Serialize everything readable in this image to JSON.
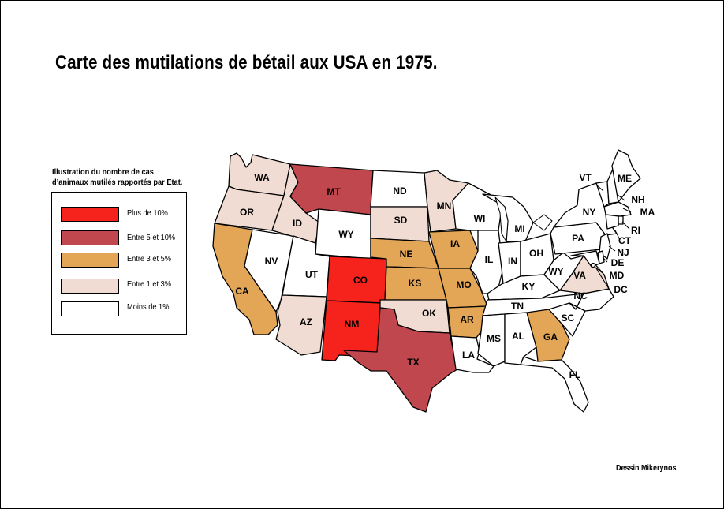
{
  "title": "Carte des mutilations de bétail aux USA en 1975.",
  "legend": {
    "caption": "Illustration du nombre de cas d’animaux mutilés rapportés par Etat.",
    "items": [
      {
        "label": "Plus de 10%",
        "color": "#f5231b"
      },
      {
        "label": "Entre 5 et 10%",
        "color": "#c0474e"
      },
      {
        "label": "Entre 3 et 5%",
        "color": "#e3a556"
      },
      {
        "label": "Entre 1 et 3%",
        "color": "#f0dcd2"
      },
      {
        "label": "Moins de 1%",
        "color": "#ffffff"
      }
    ]
  },
  "credit": "Dessin Mikerynos",
  "states": [
    {
      "abbr": "WA",
      "category": 3
    },
    {
      "abbr": "OR",
      "category": 3
    },
    {
      "abbr": "CA",
      "category": 2
    },
    {
      "abbr": "ID",
      "category": 3
    },
    {
      "abbr": "NV",
      "category": 4
    },
    {
      "abbr": "UT",
      "category": 4
    },
    {
      "abbr": "AZ",
      "category": 3
    },
    {
      "abbr": "MT",
      "category": 1
    },
    {
      "abbr": "WY",
      "category": 4
    },
    {
      "abbr": "CO",
      "category": 0
    },
    {
      "abbr": "NM",
      "category": 0
    },
    {
      "abbr": "ND",
      "category": 4
    },
    {
      "abbr": "SD",
      "category": 3
    },
    {
      "abbr": "NE",
      "category": 2
    },
    {
      "abbr": "KS",
      "category": 2
    },
    {
      "abbr": "OK",
      "category": 3
    },
    {
      "abbr": "TX",
      "category": 1
    },
    {
      "abbr": "MN",
      "category": 3
    },
    {
      "abbr": "IA",
      "category": 2
    },
    {
      "abbr": "MO",
      "category": 2
    },
    {
      "abbr": "AR",
      "category": 2
    },
    {
      "abbr": "LA",
      "category": 4
    },
    {
      "abbr": "WI",
      "category": 4
    },
    {
      "abbr": "IL",
      "category": 4
    },
    {
      "abbr": "MI",
      "category": 4
    },
    {
      "abbr": "IN",
      "category": 4
    },
    {
      "abbr": "OH",
      "category": 4
    },
    {
      "abbr": "KY",
      "category": 4
    },
    {
      "abbr": "TN",
      "category": 4
    },
    {
      "abbr": "MS",
      "category": 4
    },
    {
      "abbr": "AL",
      "category": 4
    },
    {
      "abbr": "GA",
      "category": 2
    },
    {
      "abbr": "FL",
      "category": 4
    },
    {
      "abbr": "SC",
      "category": 4
    },
    {
      "abbr": "NC",
      "category": 4
    },
    {
      "abbr": "VA",
      "category": 3
    },
    {
      "abbr": "WV",
      "label": "WY",
      "category": 4
    },
    {
      "abbr": "PA",
      "category": 4
    },
    {
      "abbr": "NY",
      "category": 4
    },
    {
      "abbr": "VT",
      "category": 4
    },
    {
      "abbr": "ME",
      "category": 4
    },
    {
      "abbr": "NH",
      "category": 4
    },
    {
      "abbr": "MA",
      "category": 4
    },
    {
      "abbr": "RI",
      "category": 4
    },
    {
      "abbr": "CT",
      "category": 4
    },
    {
      "abbr": "NJ",
      "category": 4
    },
    {
      "abbr": "DE",
      "category": 4
    },
    {
      "abbr": "MD",
      "category": 4
    },
    {
      "abbr": "DC",
      "category": 4
    }
  ]
}
